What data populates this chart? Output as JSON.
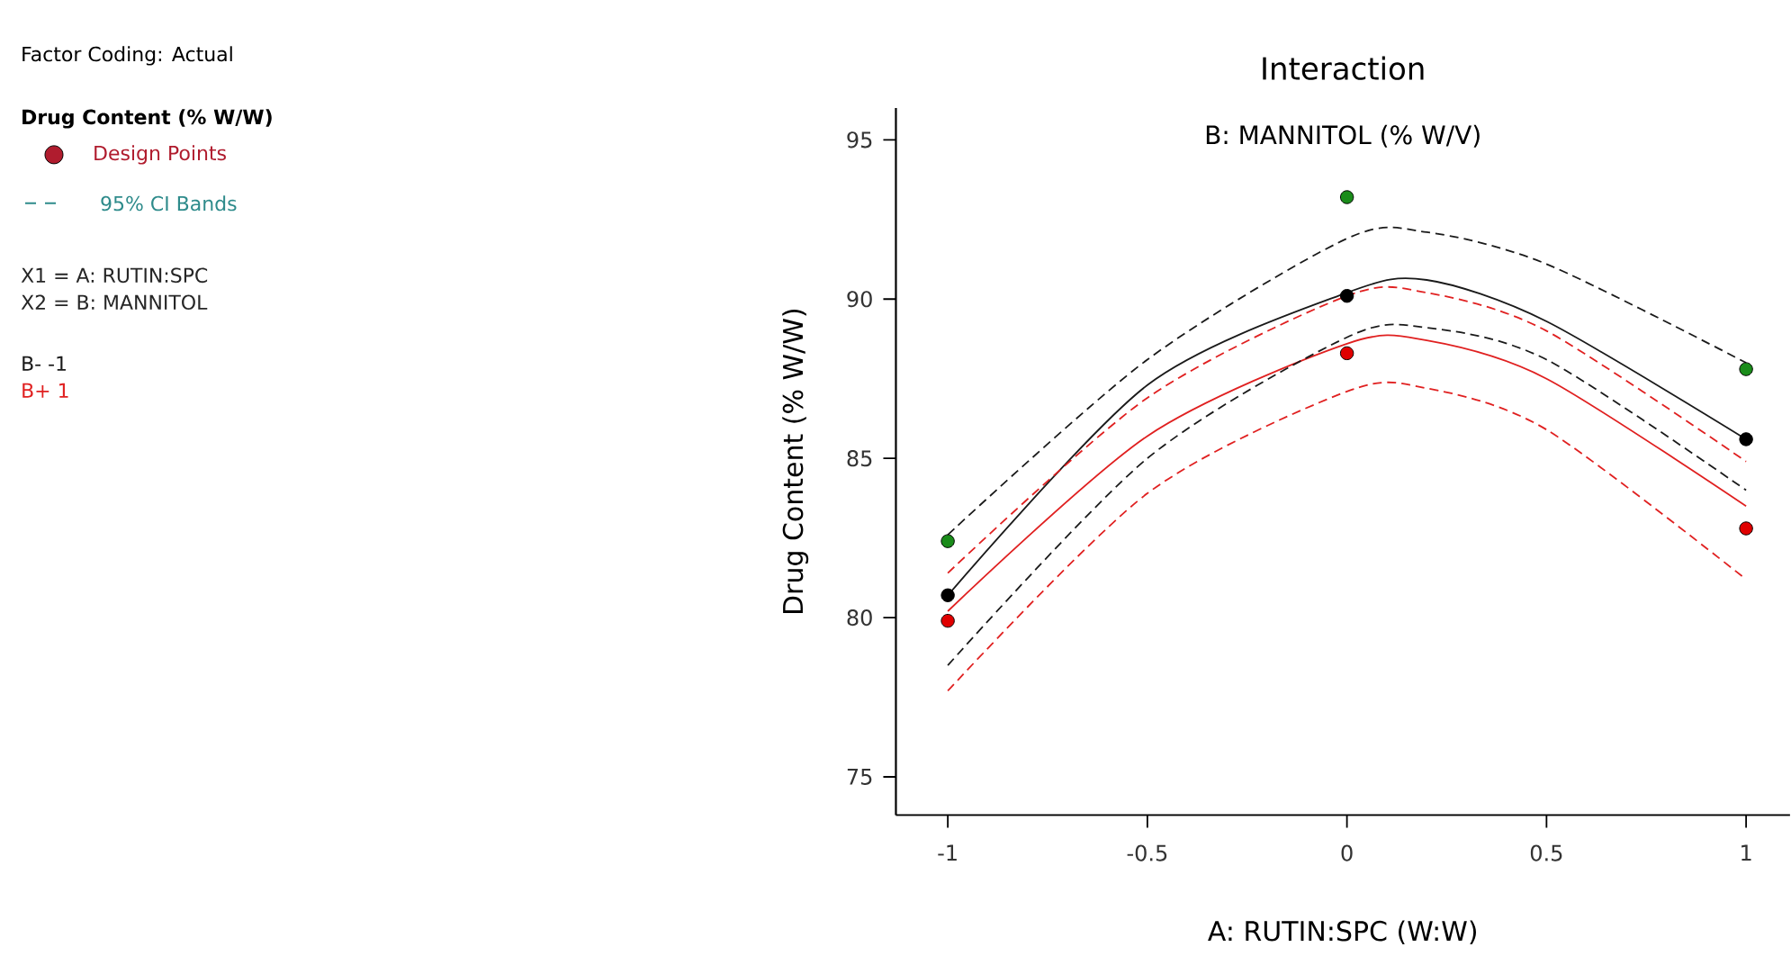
{
  "chart_data": {
    "type": "line",
    "title": "Interaction",
    "subtitle": "B: MANNITOL (% W/V)",
    "xlabel": "A: RUTIN:SPC (W:W)",
    "ylabel": "Drug Content (% W/W)",
    "legend_title": "Drug Content (% W/W)",
    "legend": "left",
    "annotations": [
      "Factor Coding: Actual",
      "Design Points",
      "95% CI Bands",
      "X1 = A: RUTIN:SPC",
      "X2 = B: MANNITOL"
    ],
    "xlim": [
      -1.13,
      1.11
    ],
    "ylim": [
      73.8,
      96
    ],
    "xticks": [
      -1,
      -0.5,
      0,
      0.5,
      1
    ],
    "yticks": [
      75,
      80,
      85,
      90,
      95
    ],
    "series": [
      {
        "name": "B- -1",
        "color": "#1a1a1a",
        "line_style": "solid",
        "x": [
          -1,
          -0.5,
          0,
          0.2,
          0.5,
          1
        ],
        "values": [
          80.7,
          87.3,
          90.2,
          90.6,
          89.3,
          85.6
        ]
      },
      {
        "name": "B+ 1",
        "color": "#e02020",
        "line_style": "solid",
        "x": [
          -1,
          -0.5,
          0,
          0.2,
          0.5,
          1
        ],
        "values": [
          80.2,
          85.7,
          88.6,
          88.7,
          87.5,
          83.5
        ]
      },
      {
        "color": "#1a1a1a",
        "line_style": "dashed",
        "x": [
          -1,
          -0.5,
          0,
          0.2,
          0.5,
          1
        ],
        "values": [
          82.6,
          88.1,
          91.9,
          92.1,
          91.1,
          88.0
        ]
      },
      {
        "color": "#1a1a1a",
        "line_style": "dashed",
        "x": [
          -1,
          -0.5,
          0,
          0.2,
          0.5,
          1
        ],
        "values": [
          78.5,
          85.0,
          88.8,
          89.1,
          88.1,
          84.0
        ]
      },
      {
        "color": "#e02020",
        "line_style": "dashed",
        "x": [
          -1,
          -0.5,
          0,
          0.2,
          0.5,
          1
        ],
        "values": [
          81.4,
          86.9,
          90.1,
          90.2,
          89.0,
          84.9
        ]
      },
      {
        "color": "#e02020",
        "line_style": "dashed",
        "x": [
          -1,
          -0.5,
          0,
          0.2,
          0.5,
          1
        ],
        "values": [
          77.7,
          83.9,
          87.1,
          87.2,
          85.9,
          81.2
        ]
      },
      {
        "type": "scatter",
        "marker": "circle",
        "x": [
          -1,
          0,
          1,
          -1,
          0,
          1,
          -1,
          0,
          1
        ],
        "values": [
          82.4,
          93.2,
          87.8,
          80.7,
          90.1,
          85.6,
          79.9,
          88.3,
          82.8
        ],
        "colors": [
          "#1a8c1a",
          "#1a8c1a",
          "#1a8c1a",
          "#000000",
          "#000000",
          "#000000",
          "#e00000",
          "#e00000",
          "#e00000"
        ]
      }
    ]
  }
}
